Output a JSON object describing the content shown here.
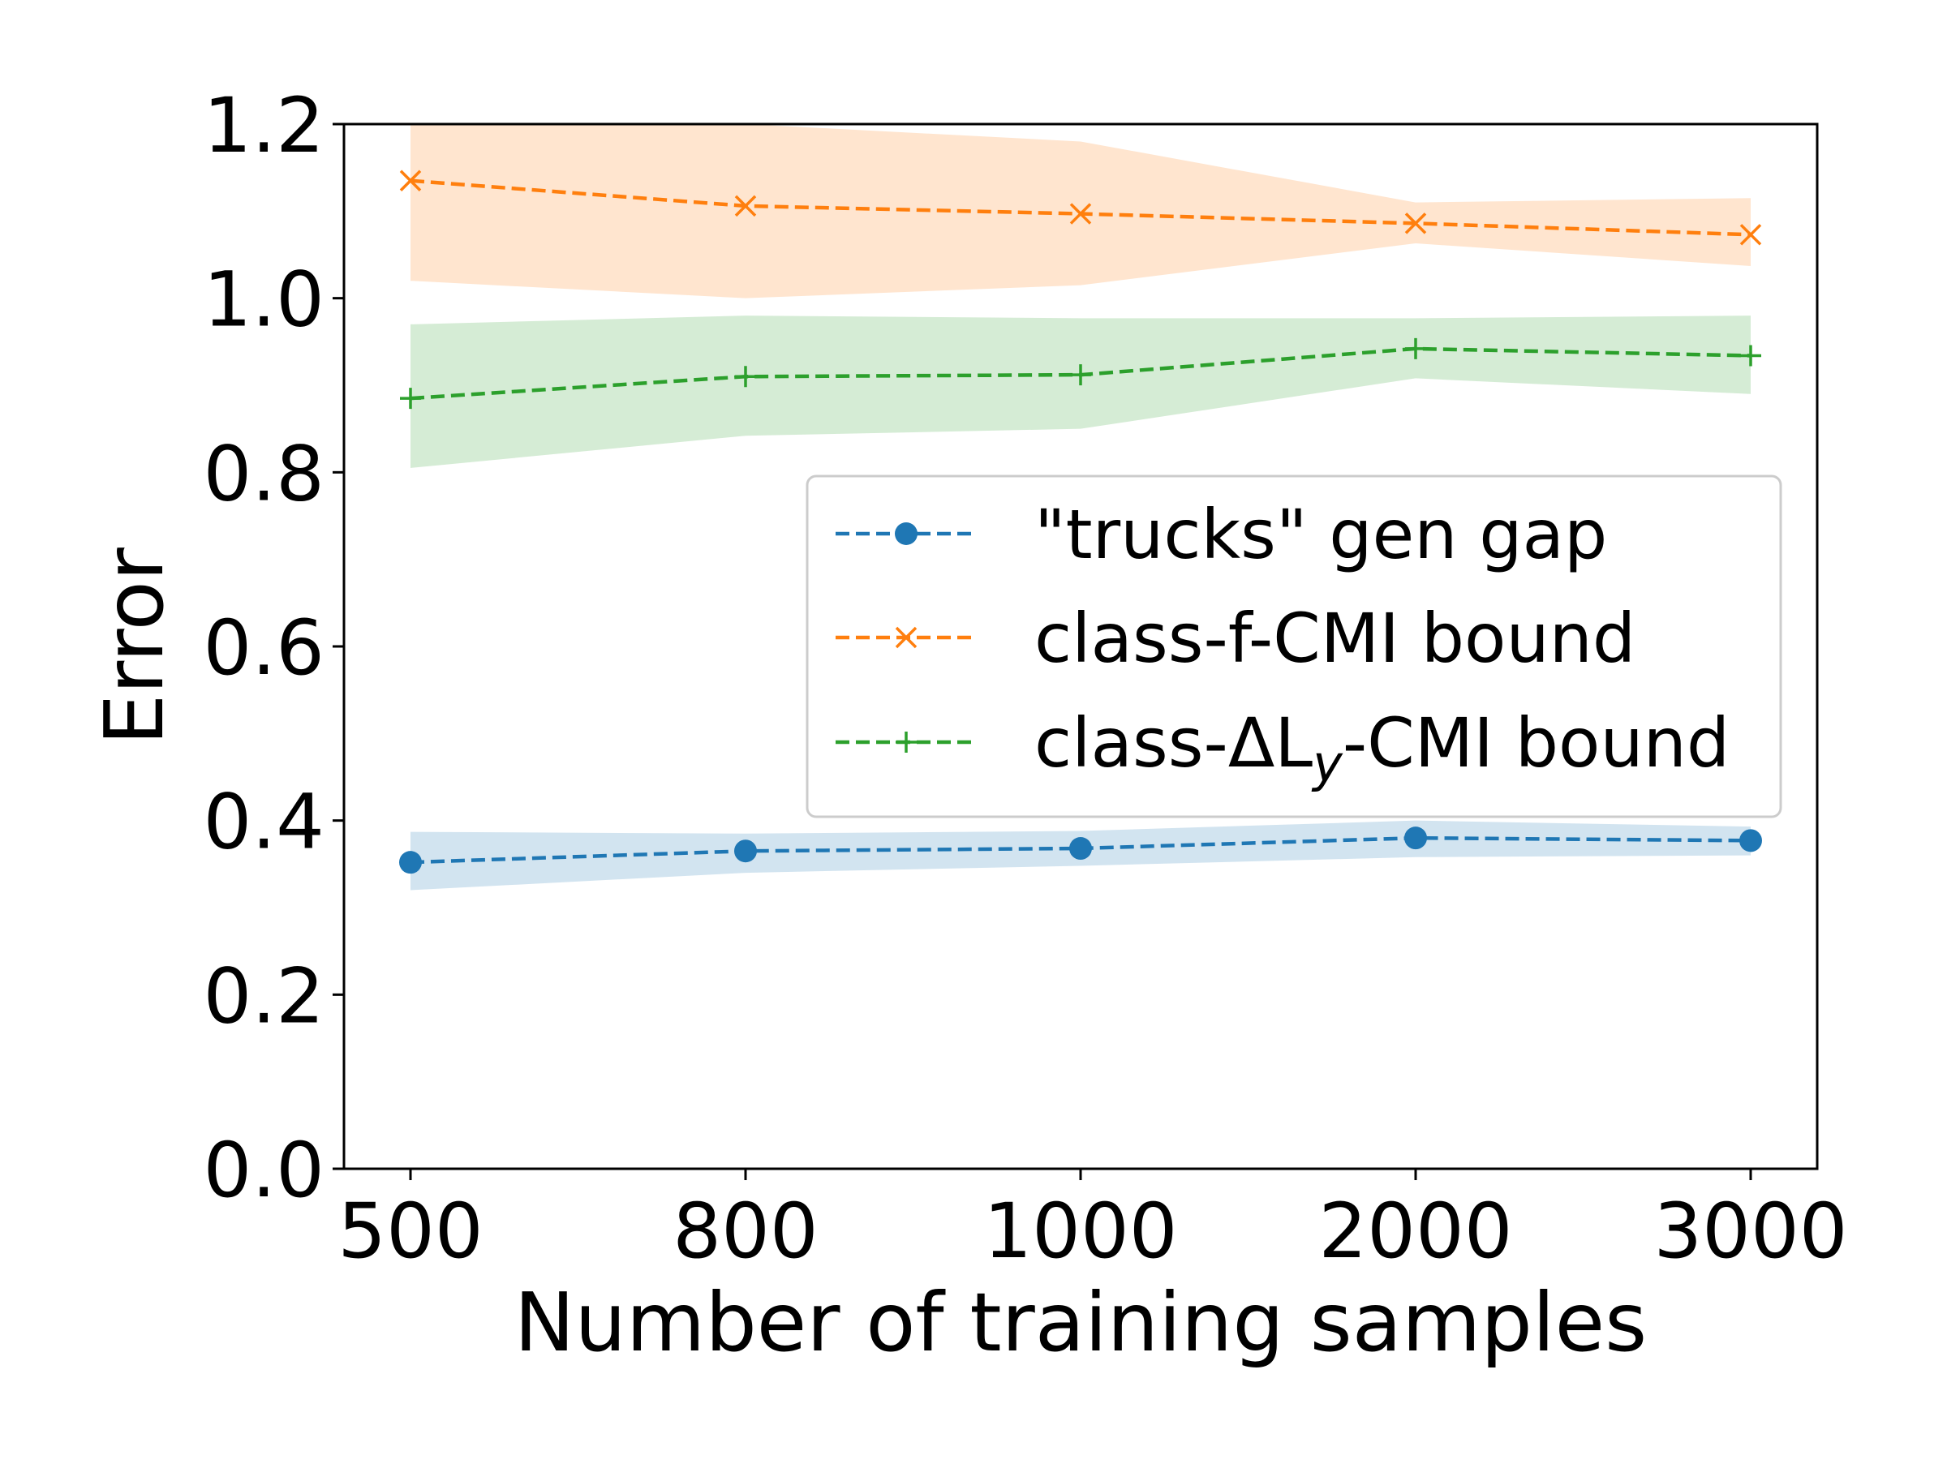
{
  "chart_data": {
    "type": "line",
    "title": "",
    "xlabel": "Number of training samples",
    "ylabel": "Error",
    "categories": [
      "500",
      "800",
      "1000",
      "2000",
      "3000"
    ],
    "ylim": [
      0.0,
      1.2
    ],
    "yticks": [
      "0.0",
      "0.2",
      "0.4",
      "0.6",
      "0.8",
      "1.0",
      "1.2"
    ],
    "grid": false,
    "legend_position": "center-right",
    "series": [
      {
        "name": "\"trucks\" gen gap",
        "legend_prefix": "\"trucks\" gen gap",
        "legend_sub": "",
        "legend_suffix": "",
        "color": "#1f77b4",
        "marker": "circle",
        "values": [
          0.352,
          0.365,
          0.368,
          0.38,
          0.377
        ],
        "lower": [
          0.32,
          0.34,
          0.348,
          0.358,
          0.36
        ],
        "upper": [
          0.387,
          0.385,
          0.388,
          0.4,
          0.393
        ]
      },
      {
        "name": "class-f-CMI bound",
        "legend_prefix": "class-f-CMI bound",
        "legend_sub": "",
        "legend_suffix": "",
        "color": "#ff7f0e",
        "marker": "x",
        "values": [
          1.135,
          1.106,
          1.097,
          1.086,
          1.073
        ],
        "lower": [
          1.02,
          1.0,
          1.015,
          1.063,
          1.037
        ],
        "upper": [
          1.2,
          1.2,
          1.18,
          1.11,
          1.115
        ]
      },
      {
        "name": "class-ΔLy-CMI bound",
        "legend_prefix": "class-ΔL",
        "legend_sub": "y",
        "legend_suffix": "-CMI bound",
        "color": "#2ca02c",
        "marker": "plus",
        "values": [
          0.885,
          0.91,
          0.912,
          0.942,
          0.934
        ],
        "lower": [
          0.805,
          0.842,
          0.85,
          0.908,
          0.89
        ],
        "upper": [
          0.97,
          0.98,
          0.977,
          0.977,
          0.98
        ]
      }
    ]
  }
}
